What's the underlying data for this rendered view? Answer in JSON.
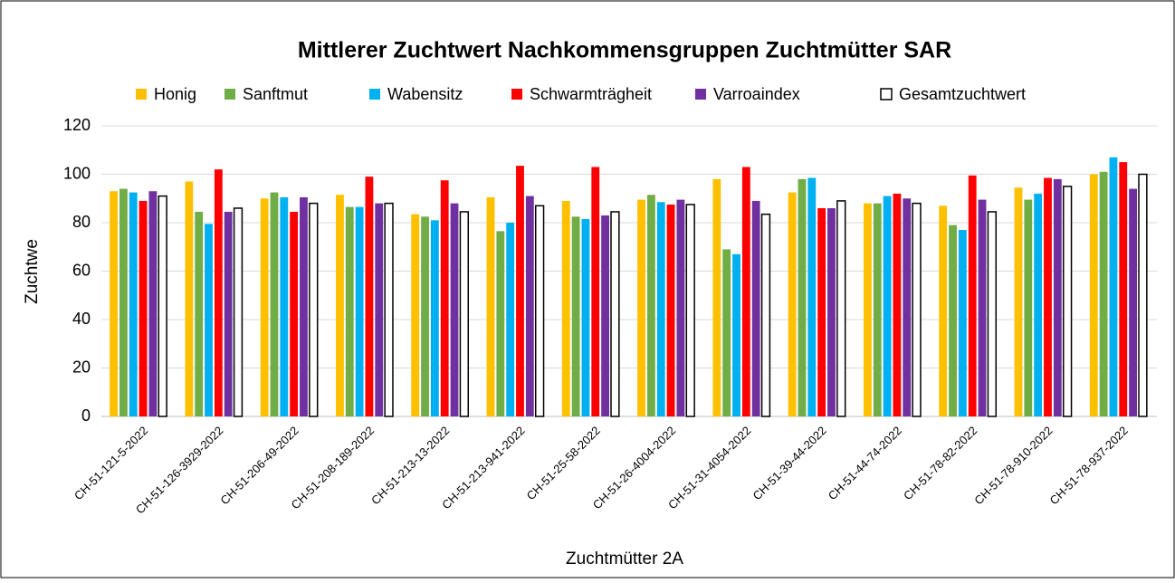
{
  "chart_data": {
    "type": "bar",
    "title": "Mittlerer Zuchtwert Nachkommensgruppen Zuchtmütter SAR",
    "x_label": "Zuchtmütter 2A",
    "y_label": "Zuchtwe",
    "categories": [
      "CH-51-121-5-2022",
      "CH-51-126-3929-2022",
      "CH-51-206-49-2022",
      "CH-51-208-189-2022",
      "CH-51-213-13-2022",
      "CH-51-213-941-2022",
      "CH-51-25-58-2022",
      "CH-51-26-4004-2022",
      "CH-51-31-4054-2022",
      "CH-51-39-44-2022",
      "CH-51-44-74-2022",
      "CH-51-78-82-2022",
      "CH-51-78-910-2022",
      "CH-51-78-937-2022"
    ],
    "series": [
      {
        "name": "Honig",
        "color": "#FFC000",
        "values": [
          93,
          97,
          90,
          91.5,
          83.5,
          90.5,
          89,
          89.5,
          98,
          92.5,
          88,
          87,
          94.5,
          100
        ]
      },
      {
        "name": "Sanftmut",
        "color": "#70AD47",
        "values": [
          94,
          84.5,
          92.5,
          86.5,
          82.5,
          76.5,
          82.5,
          91.5,
          69,
          98,
          88,
          79,
          89.5,
          101
        ]
      },
      {
        "name": "Wabensitz",
        "color": "#00B0F0",
        "values": [
          92.5,
          79.5,
          90.5,
          86.5,
          81,
          80,
          81.5,
          88.5,
          67,
          98.5,
          91,
          77,
          92,
          107
        ]
      },
      {
        "name": "Schwarmträgheit",
        "color": "#FF0000",
        "values": [
          89,
          102,
          84.5,
          99,
          97.5,
          103.5,
          103,
          87.5,
          103,
          86,
          92,
          99.5,
          98.5,
          105
        ]
      },
      {
        "name": "Varroaindex",
        "color": "#7030A0",
        "values": [
          93,
          84.5,
          90.5,
          88,
          88,
          91,
          83,
          89.5,
          89,
          86,
          90,
          89.5,
          98,
          94
        ]
      },
      {
        "name": "Gesamtzuchtwert",
        "color": "#FFFFFF",
        "values": [
          91,
          86,
          88,
          88,
          84.5,
          87,
          84.5,
          87.5,
          83.5,
          89,
          88,
          84.5,
          95,
          100
        ]
      }
    ],
    "ylim": [
      0,
      120
    ],
    "yticks": [
      0,
      20,
      40,
      60,
      80,
      100,
      120
    ],
    "grid": true,
    "legend": "top"
  }
}
